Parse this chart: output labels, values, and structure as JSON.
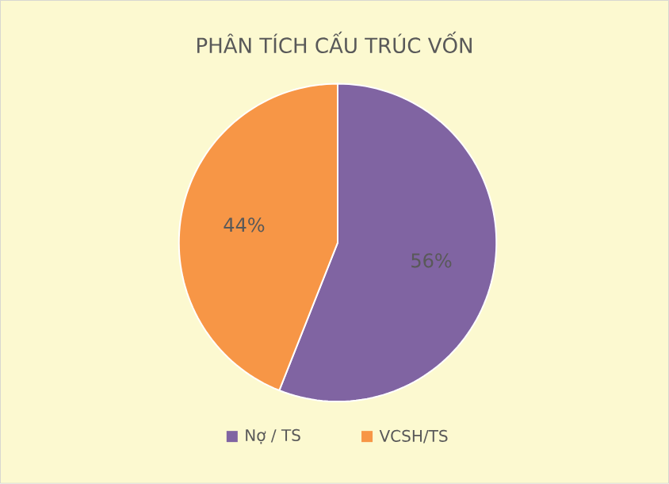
{
  "chart_data": {
    "type": "pie",
    "title": "PHÂN TÍCH CẤU TRÚC VỐN",
    "categories": [
      "Nợ / TS",
      "VCSH/TS"
    ],
    "values": [
      56,
      44
    ],
    "value_labels": [
      "56%",
      "44%"
    ],
    "colors": [
      "#8064a2",
      "#f79646"
    ],
    "legend": "bottom"
  }
}
